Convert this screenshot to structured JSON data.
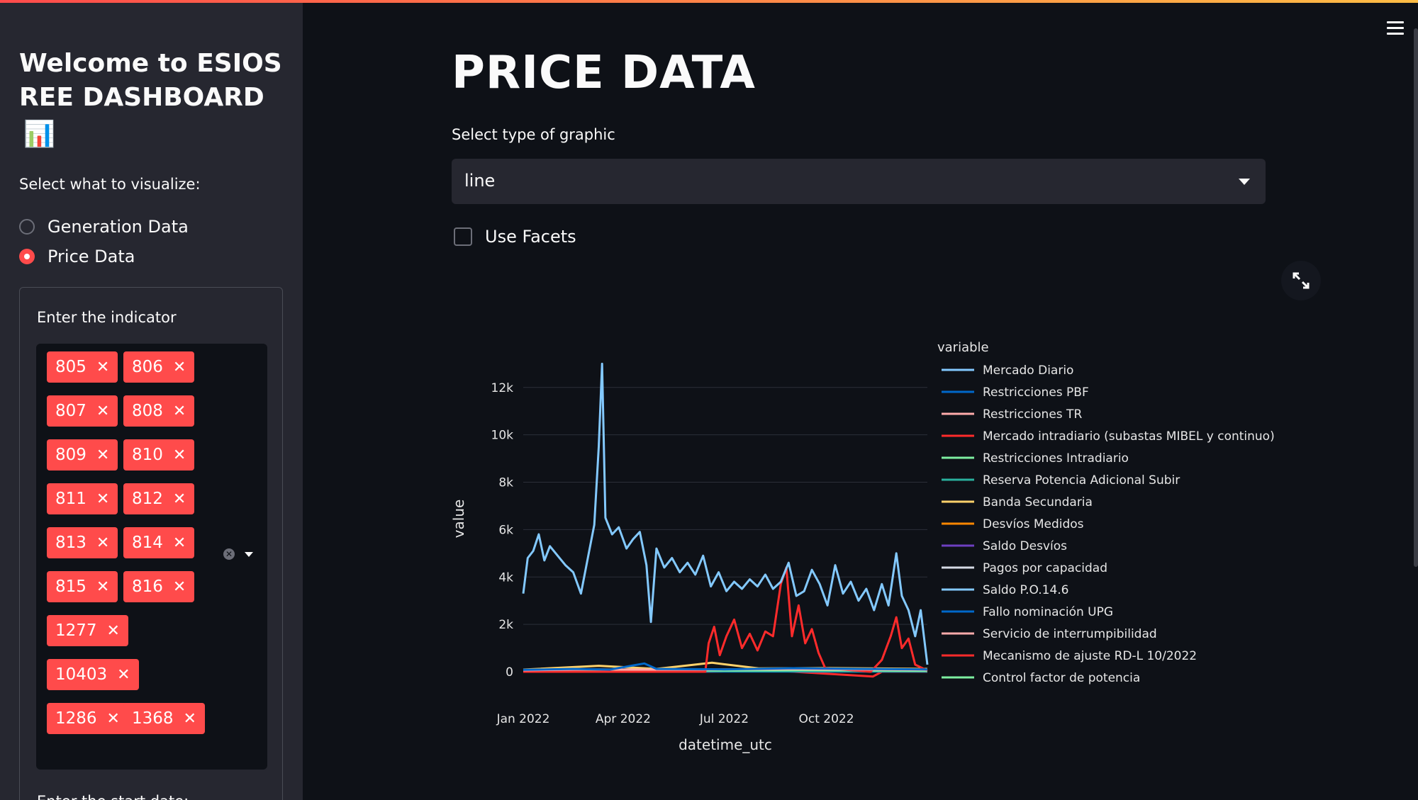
{
  "sidebar": {
    "title": "Welcome to ESIOS REE DASHBOARD",
    "title_emoji": "📊",
    "visualize_label": "Select what to visualize:",
    "options": [
      {
        "label": "Generation Data",
        "selected": false
      },
      {
        "label": "Price Data",
        "selected": true
      }
    ],
    "indicator_label": "Enter the indicator",
    "indicators": [
      "805",
      "806",
      "807",
      "808",
      "809",
      "810",
      "811",
      "812",
      "813",
      "814",
      "815",
      "816",
      "1277",
      "10403",
      "1286",
      "1368"
    ],
    "start_date_label": "Enter the start date:"
  },
  "main": {
    "title": "PRICE DATA",
    "graphic_label": "Select type of graphic",
    "graphic_value": "line",
    "facets_label": "Use Facets",
    "facets_checked": false
  },
  "colors": {
    "accent": "#ff4b4b",
    "background": "#0e1117",
    "sidebar": "#262730"
  },
  "chart_data": {
    "type": "line",
    "xlabel": "datetime_utc",
    "ylabel": "value",
    "legend_title": "variable",
    "legend_position": "right",
    "grid": true,
    "x_range": [
      "2022-01-01",
      "2022-12-31"
    ],
    "ylim": [
      0,
      13000
    ],
    "y_ticks": [
      0,
      2000,
      4000,
      6000,
      8000,
      10000,
      12000
    ],
    "y_tick_labels": [
      "0",
      "2k",
      "4k",
      "6k",
      "8k",
      "10k",
      "12k"
    ],
    "x_ticks": [
      "2022-01-01",
      "2022-04-01",
      "2022-07-01",
      "2022-10-01"
    ],
    "x_tick_labels": [
      "Jan 2022",
      "Apr 2022",
      "Jul 2022",
      "Oct 2022"
    ],
    "series": [
      {
        "name": "Mercado Diario",
        "color": "#83c9ff",
        "points": [
          [
            "2022-01-01",
            3300
          ],
          [
            "2022-01-05",
            4800
          ],
          [
            "2022-01-10",
            5100
          ],
          [
            "2022-01-15",
            5800
          ],
          [
            "2022-01-20",
            4700
          ],
          [
            "2022-01-25",
            5300
          ],
          [
            "2022-02-01",
            4900
          ],
          [
            "2022-02-08",
            4500
          ],
          [
            "2022-02-15",
            4200
          ],
          [
            "2022-02-22",
            3300
          ],
          [
            "2022-03-01",
            5000
          ],
          [
            "2022-03-06",
            6200
          ],
          [
            "2022-03-10",
            9500
          ],
          [
            "2022-03-13",
            13000
          ],
          [
            "2022-03-16",
            6500
          ],
          [
            "2022-03-22",
            5800
          ],
          [
            "2022-03-28",
            6100
          ],
          [
            "2022-04-04",
            5200
          ],
          [
            "2022-04-10",
            5600
          ],
          [
            "2022-04-16",
            5900
          ],
          [
            "2022-04-22",
            4500
          ],
          [
            "2022-04-26",
            2100
          ],
          [
            "2022-05-01",
            5200
          ],
          [
            "2022-05-08",
            4400
          ],
          [
            "2022-05-15",
            4800
          ],
          [
            "2022-05-22",
            4200
          ],
          [
            "2022-05-29",
            4600
          ],
          [
            "2022-06-05",
            4100
          ],
          [
            "2022-06-12",
            4900
          ],
          [
            "2022-06-19",
            3600
          ],
          [
            "2022-06-26",
            4200
          ],
          [
            "2022-07-03",
            3400
          ],
          [
            "2022-07-10",
            3800
          ],
          [
            "2022-07-17",
            3500
          ],
          [
            "2022-07-24",
            3900
          ],
          [
            "2022-07-31",
            3600
          ],
          [
            "2022-08-07",
            4100
          ],
          [
            "2022-08-14",
            3500
          ],
          [
            "2022-08-21",
            3800
          ],
          [
            "2022-08-28",
            4600
          ],
          [
            "2022-09-04",
            3200
          ],
          [
            "2022-09-11",
            3400
          ],
          [
            "2022-09-18",
            4300
          ],
          [
            "2022-09-25",
            3700
          ],
          [
            "2022-10-02",
            2800
          ],
          [
            "2022-10-09",
            4500
          ],
          [
            "2022-10-16",
            3300
          ],
          [
            "2022-10-23",
            3800
          ],
          [
            "2022-10-30",
            3000
          ],
          [
            "2022-11-06",
            3500
          ],
          [
            "2022-11-13",
            2600
          ],
          [
            "2022-11-20",
            3700
          ],
          [
            "2022-11-26",
            2800
          ],
          [
            "2022-12-03",
            5000
          ],
          [
            "2022-12-08",
            3200
          ],
          [
            "2022-12-14",
            2600
          ],
          [
            "2022-12-20",
            1500
          ],
          [
            "2022-12-25",
            2600
          ],
          [
            "2022-12-31",
            300
          ]
        ]
      },
      {
        "name": "Restricciones PBF",
        "color": "#0068c9",
        "points": [
          [
            "2022-01-01",
            80
          ],
          [
            "2022-02-15",
            120
          ],
          [
            "2022-03-20",
            90
          ],
          [
            "2022-04-20",
            350
          ],
          [
            "2022-05-01",
            120
          ],
          [
            "2022-07-01",
            100
          ],
          [
            "2022-09-01",
            150
          ],
          [
            "2022-11-01",
            120
          ],
          [
            "2022-12-31",
            100
          ]
        ]
      },
      {
        "name": "Restricciones TR",
        "color": "#ffabab",
        "points": [
          [
            "2022-01-01",
            60
          ],
          [
            "2022-03-01",
            100
          ],
          [
            "2022-06-01",
            90
          ],
          [
            "2022-09-01",
            110
          ],
          [
            "2022-12-31",
            80
          ]
        ]
      },
      {
        "name": "Mercado intradiario (subastas MIBEL y continuo)",
        "color": "#ff2b2b",
        "points": [
          [
            "2022-01-01",
            0
          ],
          [
            "2022-06-14",
            0
          ],
          [
            "2022-06-17",
            1200
          ],
          [
            "2022-06-22",
            1900
          ],
          [
            "2022-06-27",
            700
          ],
          [
            "2022-07-03",
            1500
          ],
          [
            "2022-07-10",
            2200
          ],
          [
            "2022-07-17",
            1000
          ],
          [
            "2022-07-24",
            1600
          ],
          [
            "2022-07-31",
            900
          ],
          [
            "2022-08-07",
            1700
          ],
          [
            "2022-08-14",
            1500
          ],
          [
            "2022-08-21",
            3700
          ],
          [
            "2022-08-26",
            4400
          ],
          [
            "2022-08-31",
            1500
          ],
          [
            "2022-09-06",
            2800
          ],
          [
            "2022-09-12",
            1200
          ],
          [
            "2022-09-18",
            1800
          ],
          [
            "2022-09-24",
            800
          ],
          [
            "2022-09-30",
            150
          ],
          [
            "2022-10-15",
            100
          ],
          [
            "2022-11-10",
            0
          ],
          [
            "2022-11-20",
            500
          ],
          [
            "2022-11-28",
            1500
          ],
          [
            "2022-12-03",
            2300
          ],
          [
            "2022-12-08",
            1000
          ],
          [
            "2022-12-14",
            1400
          ],
          [
            "2022-12-20",
            300
          ],
          [
            "2022-12-31",
            50
          ]
        ]
      },
      {
        "name": "Restricciones Intradiario",
        "color": "#7defa1",
        "points": [
          [
            "2022-01-01",
            40
          ],
          [
            "2022-04-01",
            60
          ],
          [
            "2022-07-01",
            50
          ],
          [
            "2022-10-01",
            70
          ],
          [
            "2022-12-31",
            40
          ]
        ]
      },
      {
        "name": "Reserva Potencia Adicional Subir",
        "color": "#29b09d",
        "points": [
          [
            "2022-01-01",
            20
          ],
          [
            "2022-06-01",
            30
          ],
          [
            "2022-12-31",
            20
          ]
        ]
      },
      {
        "name": "Banda Secundaria",
        "color": "#ffd16a",
        "points": [
          [
            "2022-01-01",
            90
          ],
          [
            "2022-03-10",
            250
          ],
          [
            "2022-05-01",
            120
          ],
          [
            "2022-06-20",
            380
          ],
          [
            "2022-08-01",
            140
          ],
          [
            "2022-10-01",
            160
          ],
          [
            "2022-12-31",
            120
          ]
        ]
      },
      {
        "name": "Desvíos Medidos",
        "color": "#ff8700",
        "points": [
          [
            "2022-01-01",
            50
          ],
          [
            "2022-06-01",
            80
          ],
          [
            "2022-12-31",
            60
          ]
        ]
      },
      {
        "name": "Saldo Desvíos",
        "color": "#6d3fc0",
        "points": [
          [
            "2022-01-01",
            30
          ],
          [
            "2022-06-01",
            40
          ],
          [
            "2022-12-31",
            30
          ]
        ]
      },
      {
        "name": "Pagos por capacidad",
        "color": "#d5dae5",
        "points": [
          [
            "2022-01-01",
            60
          ],
          [
            "2022-06-01",
            70
          ],
          [
            "2022-12-31",
            60
          ]
        ]
      },
      {
        "name": "Saldo P.O.14.6",
        "color": "#83c9ff",
        "points": [
          [
            "2022-01-01",
            40
          ],
          [
            "2022-06-01",
            50
          ],
          [
            "2022-12-31",
            40
          ]
        ]
      },
      {
        "name": "Fallo nominación UPG",
        "color": "#0068c9",
        "points": [
          [
            "2022-01-01",
            10
          ],
          [
            "2022-12-31",
            10
          ]
        ]
      },
      {
        "name": "Servicio de interrumpibilidad",
        "color": "#ffabab",
        "points": [
          [
            "2022-01-01",
            20
          ],
          [
            "2022-12-31",
            20
          ]
        ]
      },
      {
        "name": "Mecanismo de ajuste RD-L 10/2022",
        "color": "#ff2b2b",
        "points": [
          [
            "2022-01-01",
            0
          ],
          [
            "2022-06-15",
            0
          ],
          [
            "2022-08-15",
            50
          ],
          [
            "2022-11-12",
            -200
          ],
          [
            "2022-11-20",
            0
          ],
          [
            "2022-12-31",
            0
          ]
        ]
      },
      {
        "name": "Control factor de potencia",
        "color": "#7defa1",
        "points": [
          [
            "2022-01-01",
            15
          ],
          [
            "2022-12-31",
            15
          ]
        ]
      }
    ]
  }
}
